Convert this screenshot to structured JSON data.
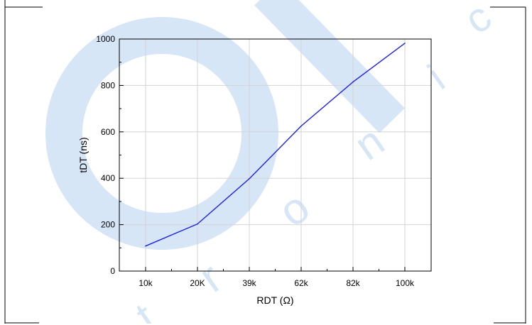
{
  "colors": {
    "line": "#1f1fe8",
    "watermark": "#d7e6f7",
    "grid": "#d3d3d3",
    "axis": "#000000",
    "frame": "#000000"
  },
  "watermark": {
    "letters": [
      "O",
      "n",
      "i",
      "c",
      "r",
      "o",
      "t"
    ]
  },
  "chart_data": {
    "type": "line",
    "title": "",
    "xlabel": "RDT (Ω)",
    "ylabel": "tDT (ns)",
    "categories": [
      "10k",
      "20K",
      "39k",
      "62k",
      "82k",
      "100k"
    ],
    "series": [
      {
        "values": [
          108,
          203,
          398,
          625,
          815,
          982
        ]
      }
    ],
    "ylim": [
      0,
      1000
    ],
    "yticks": [
      0,
      200,
      400,
      600,
      800,
      1000
    ],
    "grid": true,
    "legend": "none"
  }
}
